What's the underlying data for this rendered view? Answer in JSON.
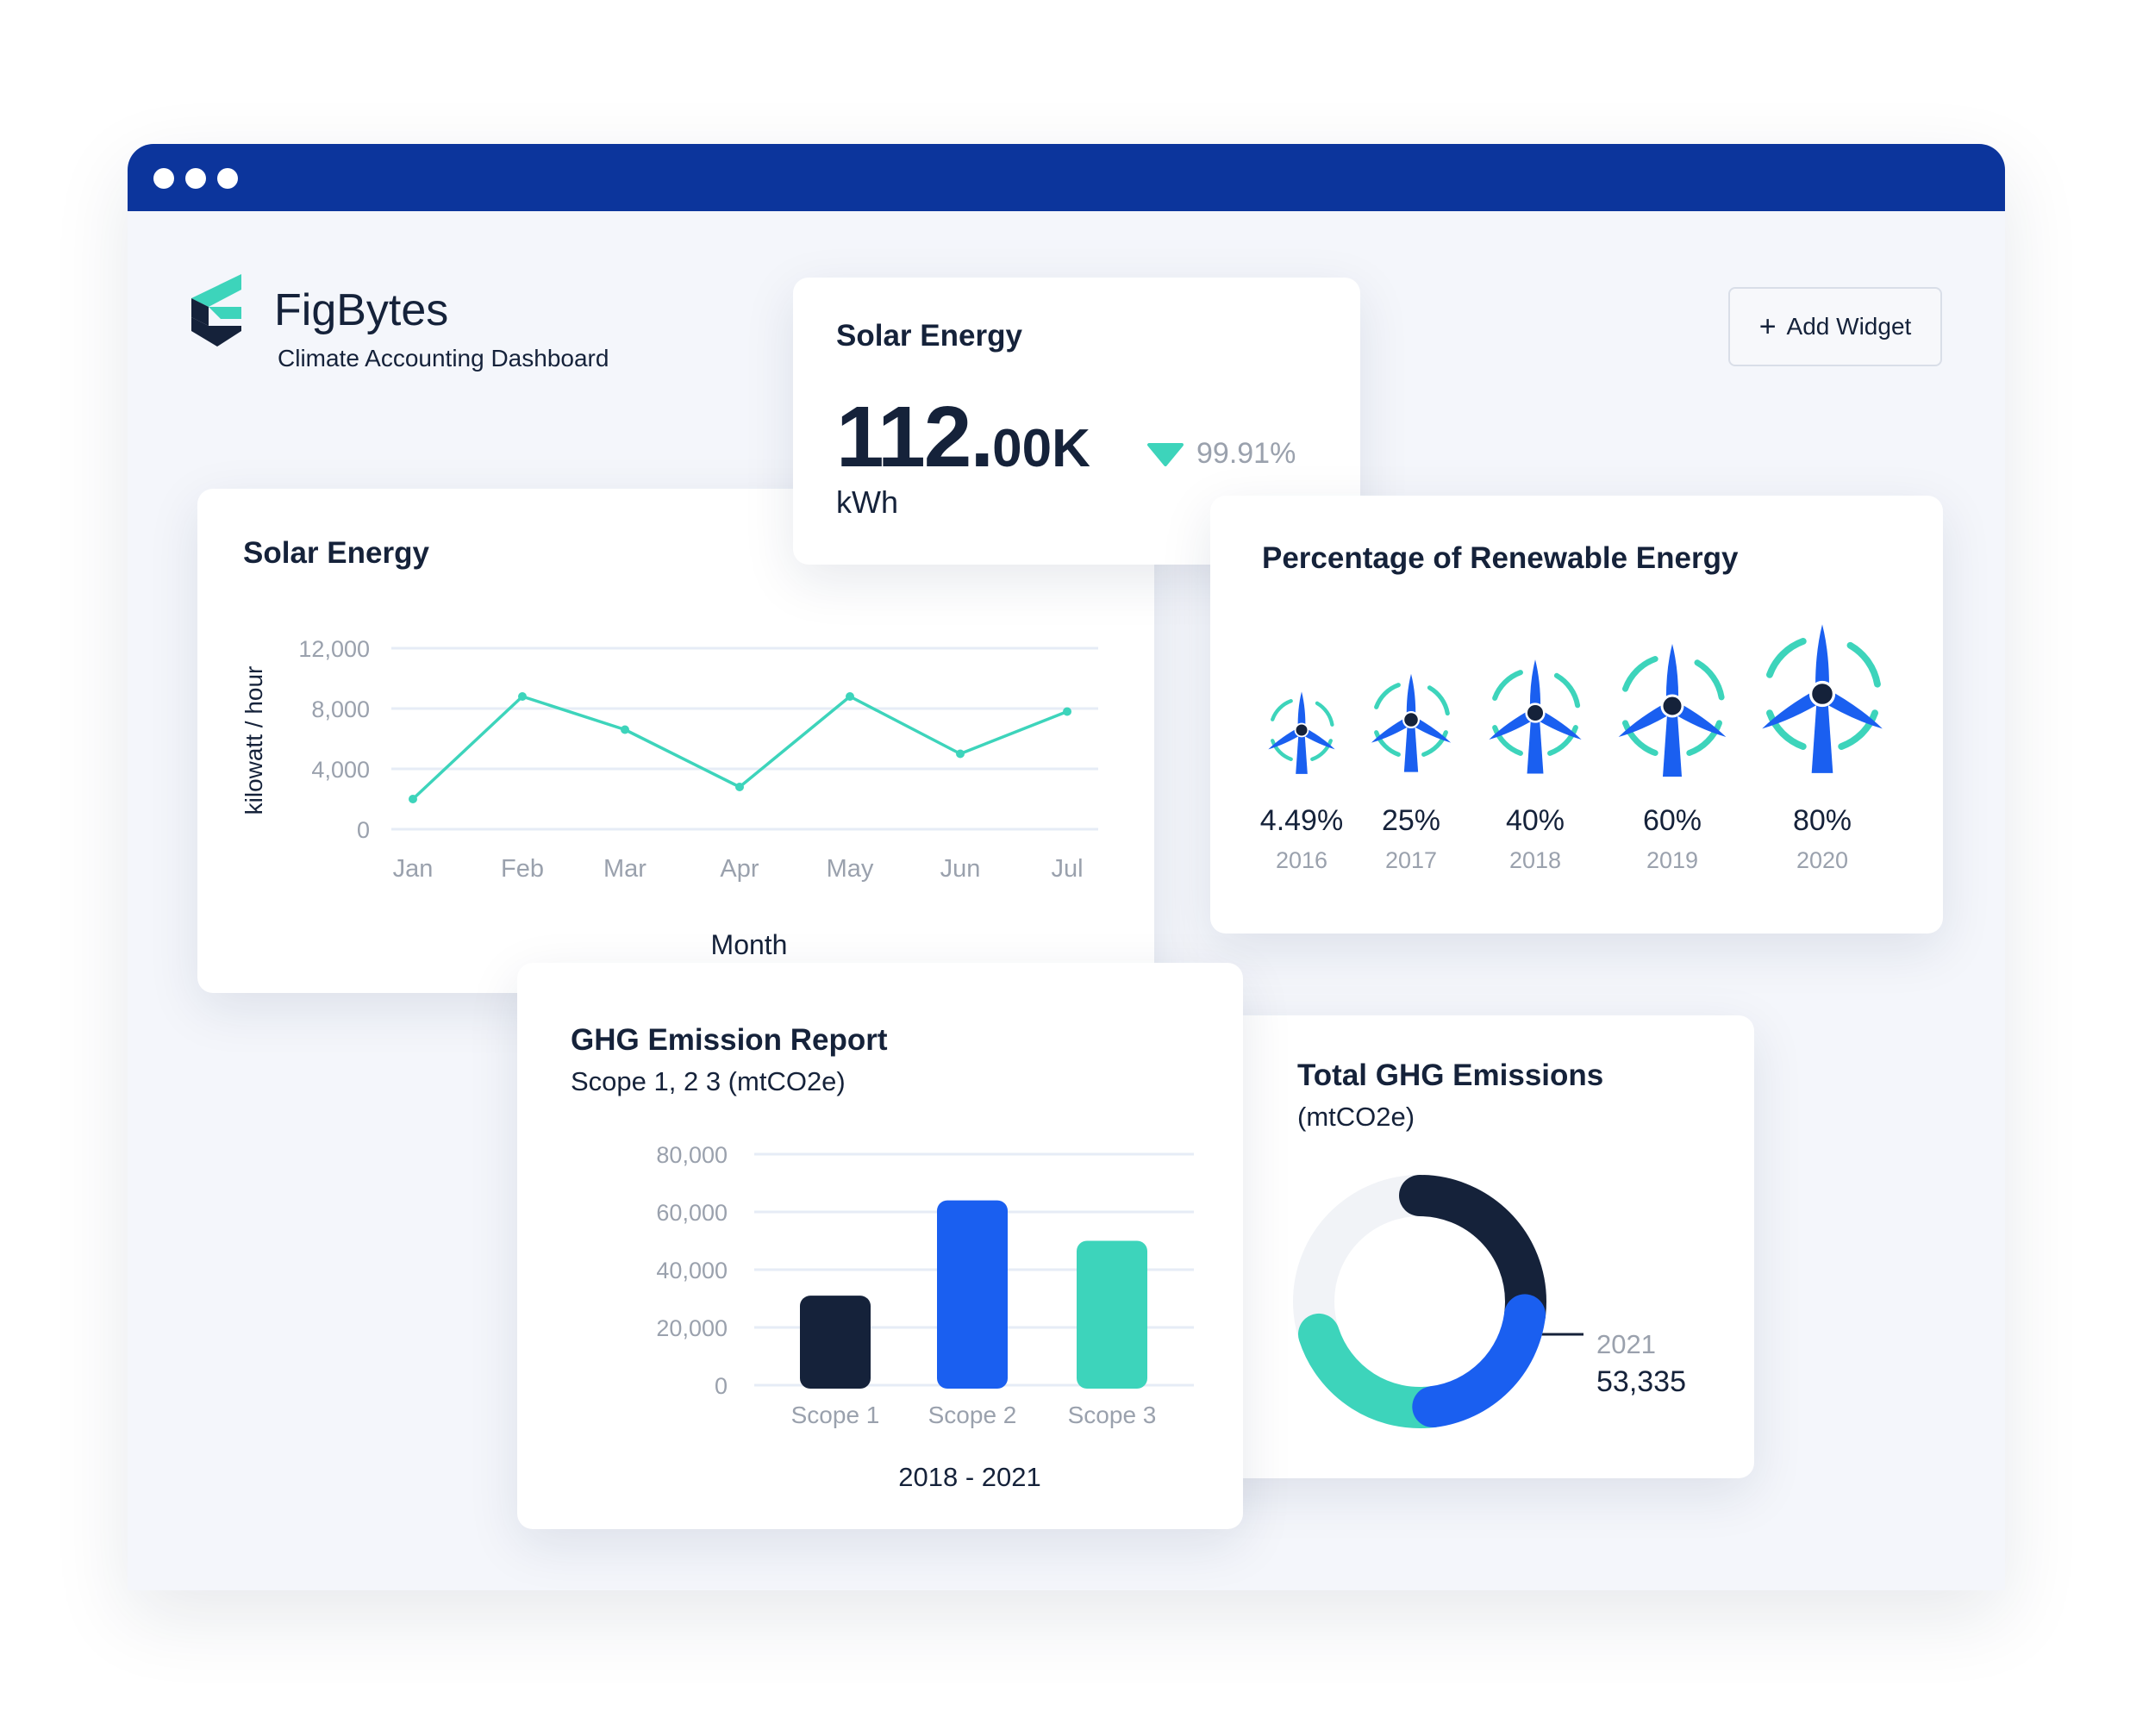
{
  "brand": {
    "name": "FigBytes",
    "subtitle": "Climate Accounting Dashboard"
  },
  "toolbar": {
    "add_widget_label": "Add Widget"
  },
  "colors": {
    "window_bar": "#0c359c",
    "teal": "#3dd4bb",
    "blue": "#1a5ff0",
    "navy": "#15223a",
    "gray_text": "#9aa1ad"
  },
  "solar_kpi": {
    "title": "Solar Energy",
    "value_main": "112.",
    "value_suffix": "00K",
    "unit": "kWh",
    "change": "99.91%",
    "change_direction": "down"
  },
  "solar_chart": {
    "title": "Solar Energy",
    "ylabel": "kilowatt / hour",
    "xlabel": "Month"
  },
  "renewable": {
    "title": "Percentage of Renewable Energy",
    "items": [
      {
        "percent": "4.49%",
        "year": "2016",
        "value": 4.49
      },
      {
        "percent": "25%",
        "year": "2017",
        "value": 25
      },
      {
        "percent": "40%",
        "year": "2018",
        "value": 40
      },
      {
        "percent": "60%",
        "year": "2019",
        "value": 60
      },
      {
        "percent": "80%",
        "year": "2020",
        "value": 80
      }
    ]
  },
  "ghg_report": {
    "title": "GHG Emission Report",
    "subtitle": "Scope 1, 2 3 (mtCO2e)",
    "xlabel": "2018 - 2021"
  },
  "ghg_total": {
    "title": "Total GHG Emissions",
    "subtitle": "(mtCO2e)",
    "year": "2021",
    "value": "53,335"
  },
  "chart_data": [
    {
      "type": "line",
      "title": "Solar Energy",
      "xlabel": "Month",
      "ylabel": "kilowatt / hour",
      "categories": [
        "Jan",
        "Feb",
        "Mar",
        "Apr",
        "May",
        "Jun",
        "Jul"
      ],
      "values": [
        2000,
        8800,
        6600,
        2800,
        8800,
        5000,
        7800
      ],
      "ylim": [
        0,
        12000
      ],
      "yticks": [
        0,
        4000,
        8000,
        12000
      ],
      "ytick_labels": [
        "0",
        "4,000",
        "8,000",
        "12,000"
      ],
      "grid": true,
      "color": "#3dd4bb"
    },
    {
      "type": "bar",
      "title": "GHG Emission Report",
      "subtitle": "Scope 1, 2 3 (mtCO2e)",
      "xlabel": "2018 - 2021",
      "categories": [
        "Scope 1",
        "Scope 2",
        "Scope 3"
      ],
      "values": [
        31000,
        64000,
        50000
      ],
      "colors": [
        "#15223a",
        "#1a5ff0",
        "#3dd4bb"
      ],
      "ylim": [
        0,
        80000
      ],
      "yticks": [
        0,
        20000,
        40000,
        60000,
        80000
      ],
      "ytick_labels": [
        "0",
        "20,000",
        "40,000",
        "60,000",
        "80,000"
      ],
      "grid": true
    },
    {
      "type": "pie",
      "title": "Total GHG Emissions",
      "subtitle": "(mtCO2e)",
      "slices": [
        {
          "color": "#15223a",
          "fraction": 0.27
        },
        {
          "color": "#1a5ff0",
          "fraction": 0.21
        },
        {
          "color": "#3dd4bb",
          "fraction": 0.22
        }
      ],
      "annotation": {
        "label": "2021",
        "value": "53,335"
      }
    }
  ]
}
